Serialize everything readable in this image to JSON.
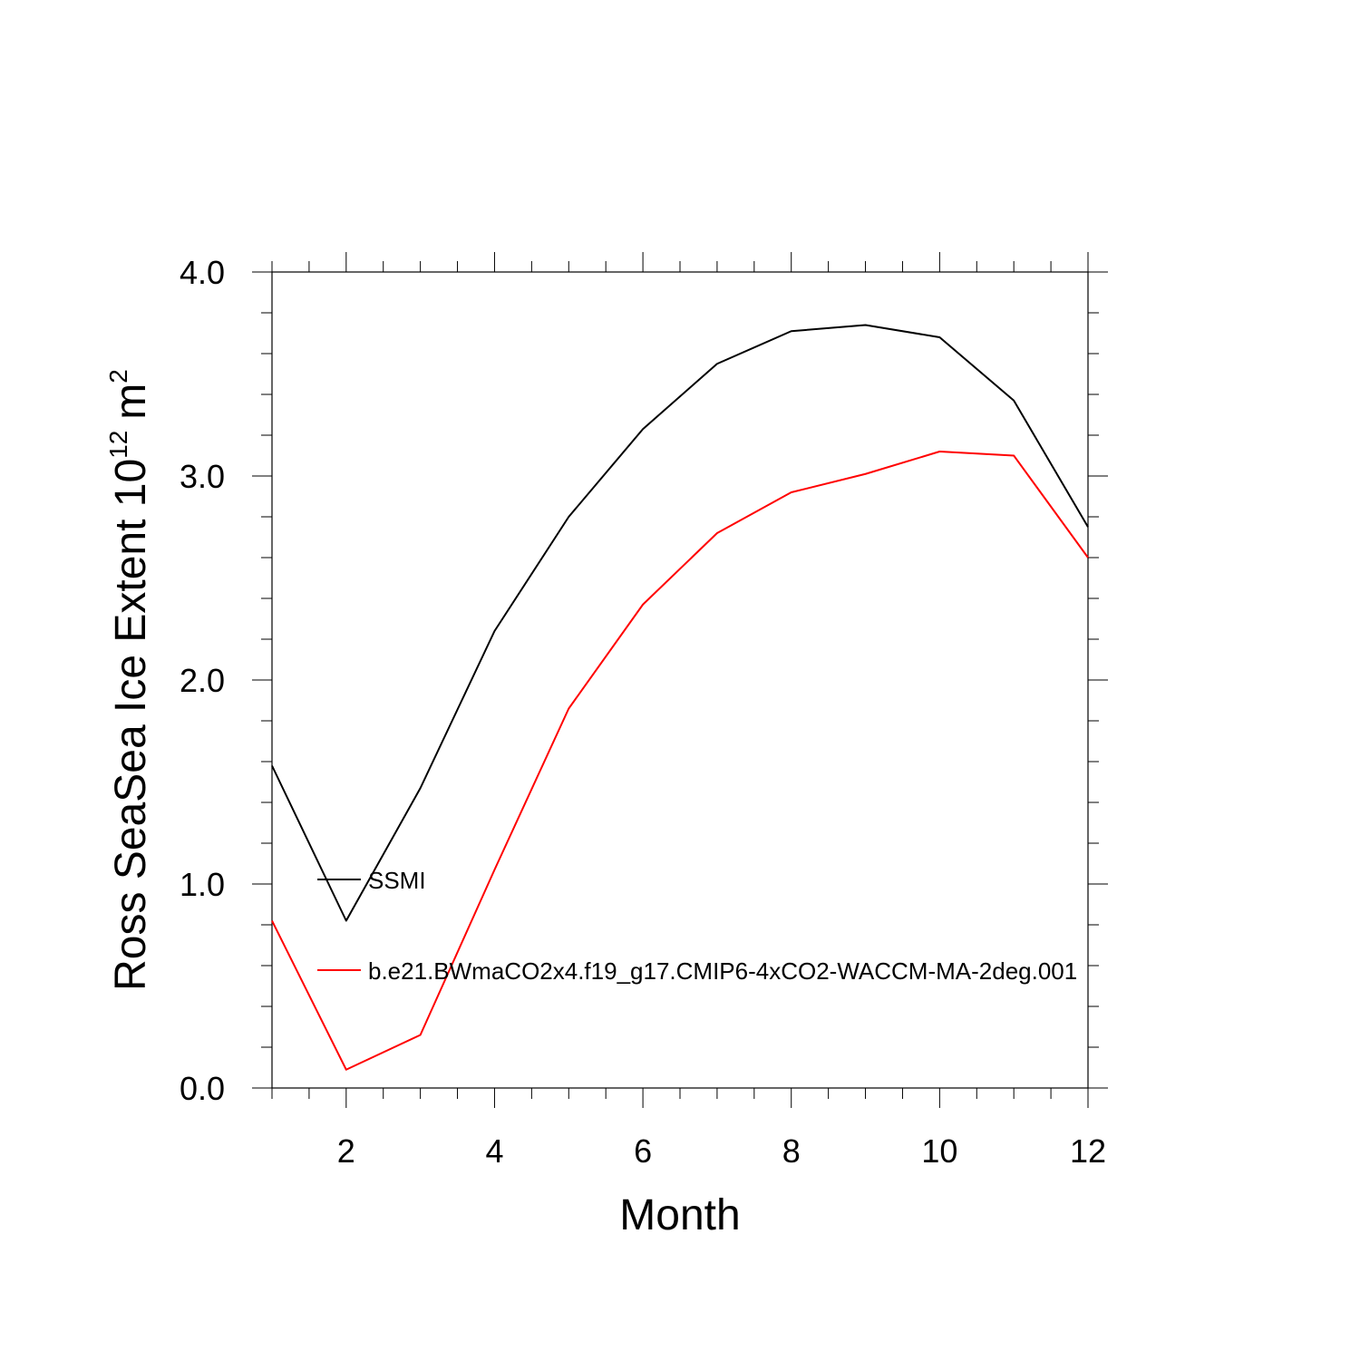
{
  "chart_data": {
    "type": "line",
    "xlabel": "Month",
    "ylabel_main": "Ross SeaSea Ice Extent 10",
    "ylabel_exp": "12",
    "ylabel_unit": "m",
    "ylabel_unit_exp": "2",
    "xlim": [
      1,
      12
    ],
    "ylim": [
      0,
      4
    ],
    "x_ticks": [
      2,
      4,
      6,
      8,
      10,
      12
    ],
    "x_tick_labels": [
      "2",
      "4",
      "6",
      "8",
      "10",
      "12"
    ],
    "y_ticks": [
      0,
      1,
      2,
      3,
      4
    ],
    "y_tick_labels": [
      "0.0",
      "1.0",
      "2.0",
      "3.0",
      "4.0"
    ],
    "x": [
      1,
      2,
      3,
      4,
      5,
      6,
      7,
      8,
      9,
      10,
      11,
      12
    ],
    "series": [
      {
        "name": "SSMI",
        "color": "#000000",
        "values": [
          1.58,
          0.82,
          1.47,
          2.24,
          2.8,
          3.23,
          3.55,
          3.71,
          3.74,
          3.68,
          3.37,
          2.75
        ]
      },
      {
        "name": "b.e21.BWmaCO2x4.f19_g17.CMIP6-4xCO2-WACCM-MA-2deg.001",
        "color": "#ff0000",
        "values": [
          0.82,
          0.09,
          0.26,
          1.07,
          1.86,
          2.37,
          2.72,
          2.92,
          3.01,
          3.12,
          3.1,
          2.6
        ]
      }
    ],
    "grid": false,
    "legend_placement": "inside-left"
  }
}
